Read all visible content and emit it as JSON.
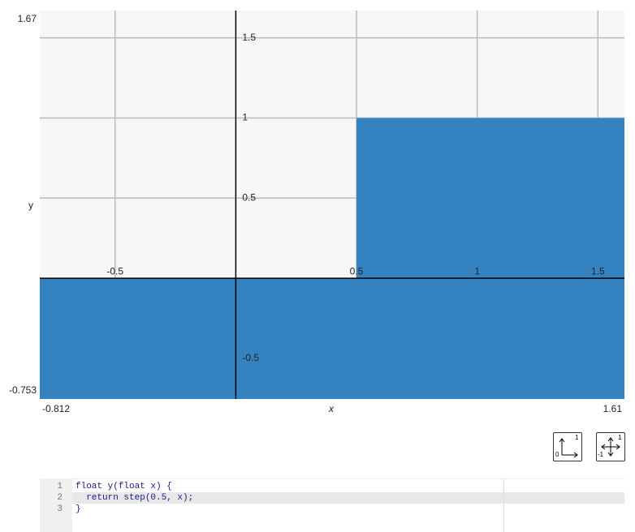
{
  "chart_data": {
    "type": "area",
    "x_label": "x",
    "y_label": "y",
    "x": [
      -0.812,
      0.5,
      0.5,
      1.61
    ],
    "values": [
      0,
      0,
      1,
      1
    ],
    "color": "#3483c0",
    "xlim": [
      -0.812,
      1.61
    ],
    "ylim": [
      -0.753,
      1.67
    ],
    "xticks": [
      -0.5,
      0.5,
      1,
      1.5
    ],
    "yticks": [
      -0.5,
      0.5,
      1,
      1.5
    ],
    "grid": true
  },
  "buttons": [
    {
      "labels": [
        "0",
        "1"
      ]
    },
    {
      "labels": [
        "-1",
        "1"
      ]
    }
  ],
  "editor": {
    "line_numbers": [
      "1",
      "2",
      "3"
    ],
    "lines": [
      "float y(float x) {",
      "  return step(0.5, x);",
      "}"
    ]
  }
}
